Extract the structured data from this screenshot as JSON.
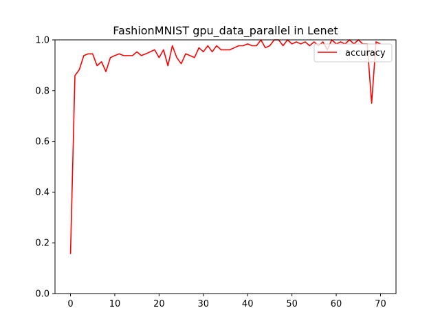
{
  "chart_data": {
    "type": "line",
    "title": "FashionMNIST gpu_data_parallel in Lenet",
    "xlabel": "",
    "ylabel": "",
    "xlim": [
      -3.5,
      73.5
    ],
    "ylim": [
      0.0,
      1.0
    ],
    "x_ticks": [
      0,
      10,
      20,
      30,
      40,
      50,
      60,
      70
    ],
    "y_ticks": [
      0.0,
      0.2,
      0.4,
      0.6,
      0.8,
      1.0
    ],
    "x_tick_labels": [
      "0",
      "10",
      "20",
      "30",
      "40",
      "50",
      "60",
      "70"
    ],
    "y_tick_labels": [
      "0.0",
      "0.2",
      "0.4",
      "0.6",
      "0.8",
      "1.0"
    ],
    "grid": false,
    "legend_position": "upper-right",
    "series": [
      {
        "name": "accuracy",
        "color": "#ff0000",
        "x": [
          0,
          1,
          2,
          3,
          4,
          5,
          6,
          7,
          8,
          9,
          10,
          11,
          12,
          13,
          14,
          15,
          16,
          17,
          18,
          19,
          20,
          21,
          22,
          23,
          24,
          25,
          26,
          27,
          28,
          29,
          30,
          31,
          32,
          33,
          34,
          35,
          36,
          37,
          38,
          39,
          40,
          41,
          42,
          43,
          44,
          45,
          46,
          47,
          48,
          49,
          50,
          51,
          52,
          53,
          54,
          55,
          56,
          57,
          58,
          59,
          60,
          61,
          62,
          63,
          64,
          65,
          66,
          67,
          68,
          69,
          70
        ],
        "values": [
          0.156,
          0.859,
          0.883,
          0.938,
          0.945,
          0.945,
          0.898,
          0.914,
          0.875,
          0.93,
          0.938,
          0.945,
          0.938,
          0.938,
          0.938,
          0.953,
          0.938,
          0.945,
          0.953,
          0.961,
          0.93,
          0.961,
          0.898,
          0.977,
          0.93,
          0.906,
          0.945,
          0.938,
          0.93,
          0.969,
          0.953,
          0.977,
          0.953,
          0.977,
          0.961,
          0.961,
          0.961,
          0.969,
          0.977,
          0.977,
          0.984,
          0.977,
          0.977,
          1.0,
          0.969,
          0.977,
          1.0,
          1.0,
          0.977,
          1.0,
          0.984,
          0.992,
          0.984,
          0.992,
          0.977,
          0.992,
          0.977,
          0.992,
          0.961,
          1.0,
          0.984,
          0.992,
          0.984,
          1.0,
          0.984,
          1.0,
          0.984,
          0.984,
          0.75,
          0.992,
          0.984
        ]
      }
    ]
  }
}
